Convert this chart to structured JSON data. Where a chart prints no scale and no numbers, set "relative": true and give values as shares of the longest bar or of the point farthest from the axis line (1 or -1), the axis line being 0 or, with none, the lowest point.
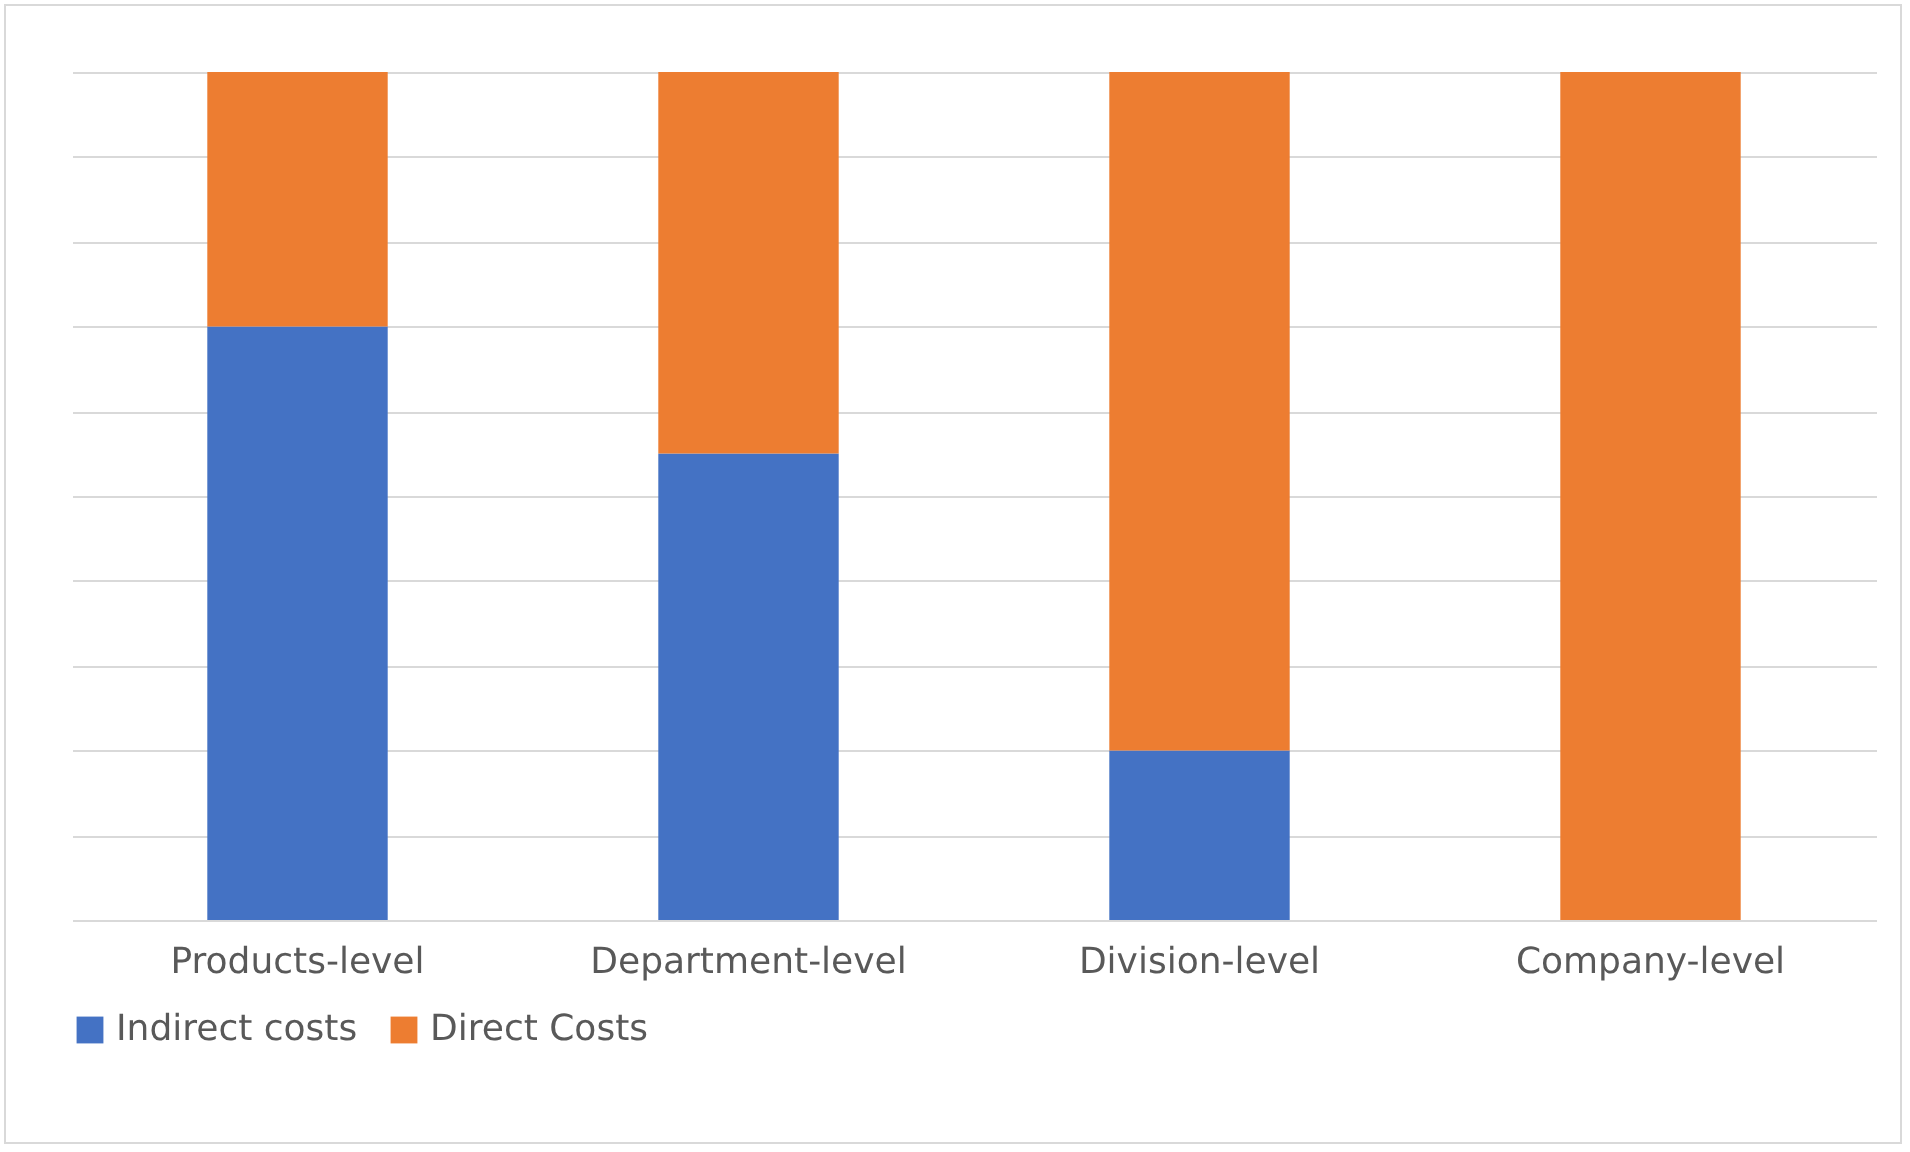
{
  "chart_data": {
    "type": "bar",
    "stacked": true,
    "relative": true,
    "categories": [
      "Products-level",
      "Department-level",
      "Division-level",
      "Company-level"
    ],
    "series": [
      {
        "name": "Indirect costs",
        "color": "#4472c4",
        "values": [
          0.7,
          0.55,
          0.2,
          0
        ]
      },
      {
        "name": "Direct Costs",
        "color": "#ed7d31",
        "values": [
          0.3,
          0.45,
          0.8,
          1
        ]
      }
    ],
    "grid": "y",
    "legend": "bottom"
  }
}
